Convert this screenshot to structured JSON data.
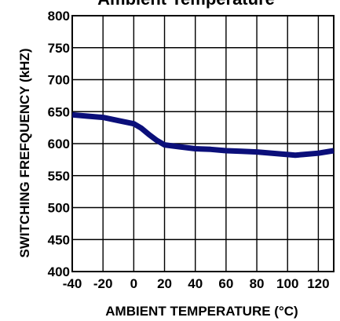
{
  "chart_data": {
    "type": "line",
    "title": "Ambient Temperature",
    "xlabel": "AMBIENT TEMPERATURE (°C)",
    "ylabel": "SWITCHING FREFQUENCY (kHZ)",
    "xlim": [
      -40,
      130
    ],
    "ylim": [
      400,
      800
    ],
    "xticks": [
      -40,
      -20,
      0,
      20,
      40,
      60,
      80,
      100,
      120
    ],
    "xtick_labels": [
      "-40",
      "-20",
      "0",
      "20",
      "40",
      "60",
      "80",
      "100",
      "120"
    ],
    "yticks": [
      400,
      450,
      500,
      550,
      600,
      650,
      700,
      750,
      800
    ],
    "ytick_labels": [
      "400",
      "450",
      "500",
      "550",
      "600",
      "650",
      "700",
      "750",
      "800"
    ],
    "grid": true,
    "series": [
      {
        "color": "#0b0f7a",
        "x": [
          -40,
          -30,
          -20,
          -10,
          0,
          5,
          10,
          15,
          20,
          30,
          40,
          50,
          60,
          70,
          80,
          90,
          100,
          105,
          110,
          120,
          130
        ],
        "y": [
          645,
          643,
          641,
          636,
          631,
          624,
          614,
          605,
          598,
          595,
          592,
          591,
          589,
          588,
          587,
          585,
          583,
          582,
          583,
          585,
          589
        ]
      }
    ]
  }
}
